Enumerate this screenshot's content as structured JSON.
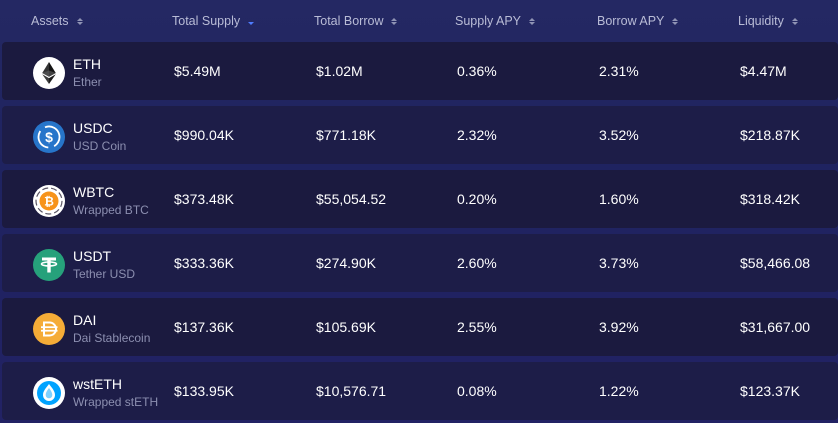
{
  "columns": [
    {
      "label": "Assets",
      "sort_active": false
    },
    {
      "label": "Total Supply",
      "sort_active": true
    },
    {
      "label": "Total Borrow",
      "sort_active": false
    },
    {
      "label": "Supply APY",
      "sort_active": false
    },
    {
      "label": "Borrow APY",
      "sort_active": false
    },
    {
      "label": "Liquidity",
      "sort_active": false
    }
  ],
  "rows": [
    {
      "symbol": "ETH",
      "name": "Ether",
      "icon": "eth-icon",
      "total_supply": "$5.49M",
      "total_borrow": "$1.02M",
      "supply_apy": "0.36%",
      "borrow_apy": "2.31%",
      "liquidity": "$4.47M"
    },
    {
      "symbol": "USDC",
      "name": "USD Coin",
      "icon": "usdc-icon",
      "total_supply": "$990.04K",
      "total_borrow": "$771.18K",
      "supply_apy": "2.32%",
      "borrow_apy": "3.52%",
      "liquidity": "$218.87K"
    },
    {
      "symbol": "WBTC",
      "name": "Wrapped BTC",
      "icon": "wbtc-icon",
      "total_supply": "$373.48K",
      "total_borrow": "$55,054.52",
      "supply_apy": "0.20%",
      "borrow_apy": "1.60%",
      "liquidity": "$318.42K"
    },
    {
      "symbol": "USDT",
      "name": "Tether USD",
      "icon": "usdt-icon",
      "total_supply": "$333.36K",
      "total_borrow": "$274.90K",
      "supply_apy": "2.60%",
      "borrow_apy": "3.73%",
      "liquidity": "$58,466.08"
    },
    {
      "symbol": "DAI",
      "name": "Dai Stablecoin",
      "icon": "dai-icon",
      "total_supply": "$137.36K",
      "total_borrow": "$105.69K",
      "supply_apy": "2.55%",
      "borrow_apy": "3.92%",
      "liquidity": "$31,667.00"
    },
    {
      "symbol": "wstETH",
      "name": "Wrapped stETH",
      "icon": "wsteth-icon",
      "total_supply": "$133.95K",
      "total_borrow": "$10,576.71",
      "supply_apy": "0.08%",
      "borrow_apy": "1.22%",
      "liquidity": "$123.37K"
    }
  ],
  "colors": {
    "background": "#232762",
    "row_background": "#1b1a3f",
    "header_text": "#b9bcd6",
    "subtext": "#8c8fb0",
    "sort_active": "#4f7cff",
    "eth": "#ffffff",
    "usdc": "#2775ca",
    "wbtc": "#f7931a",
    "usdt": "#26a17b",
    "dai": "#f5ac37",
    "wsteth": "#3aa0f0"
  }
}
